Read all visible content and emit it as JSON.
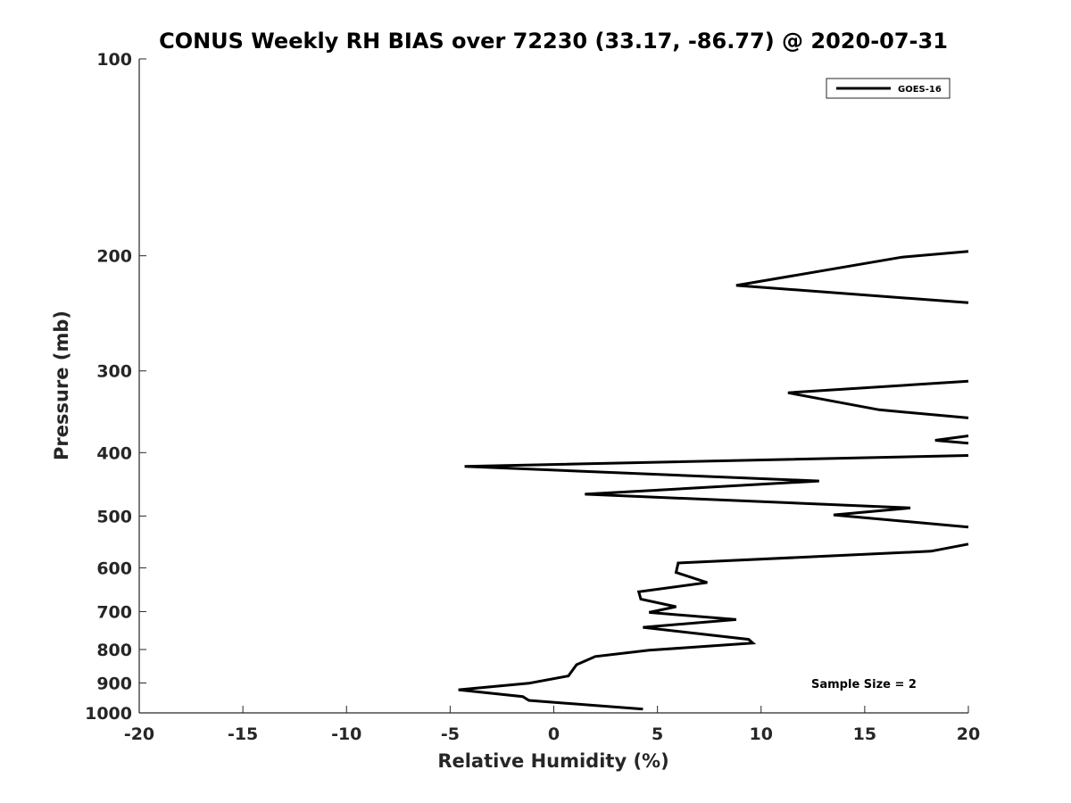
{
  "chart_data": {
    "type": "line",
    "title": "CONUS Weekly RH BIAS over 72230 (33.17, -86.77) @ 2020-07-31",
    "xlabel": "Relative Humidity (%)",
    "ylabel": "Pressure (mb)",
    "xlim": [
      -20,
      20
    ],
    "ylim": [
      100,
      1000
    ],
    "y_scale": "log",
    "y_reversed": true,
    "x_ticks": [
      -20,
      -15,
      -10,
      -5,
      0,
      5,
      10,
      15,
      20
    ],
    "x_tick_labels": [
      "-20",
      "-15",
      "-10",
      "-5",
      "0",
      "5",
      "10",
      "15",
      "20"
    ],
    "y_ticks": [
      100,
      200,
      300,
      400,
      500,
      600,
      700,
      800,
      900,
      1000
    ],
    "y_tick_labels": [
      "100",
      "200",
      "300",
      "400",
      "500",
      "600",
      "700",
      "800",
      "900",
      "1000"
    ],
    "grid": false,
    "legend_position": "top-right",
    "annotation": "Sample Size = 2",
    "line_color": "#000000",
    "series": [
      {
        "name": "GOES-16",
        "segments": [
          {
            "x": [
              20,
              16.8,
              8.8,
              20
            ],
            "y": [
              197,
              201,
              222,
              236
            ]
          },
          {
            "x": [
              20,
              11.3,
              15.7,
              20
            ],
            "y": [
              311,
              324,
              344,
              354
            ]
          },
          {
            "x": [
              20,
              18.4,
              20
            ],
            "y": [
              377,
              383,
              387
            ]
          },
          {
            "x": [
              20,
              -4.3,
              12.8,
              1.5,
              17.2,
              13.5,
              20
            ],
            "y": [
              404,
              420,
              442,
              463,
              486,
              498,
              520
            ]
          },
          {
            "x": [
              20,
              18.2,
              6.0,
              5.9,
              7.4,
              4.1,
              4.2,
              5.9,
              4.6,
              8.8,
              4.3,
              9.4,
              9.6,
              4.6,
              2.0,
              1.1,
              0.7,
              -1.2,
              -4.6,
              -1.5,
              -1.2,
              4.3
            ],
            "y": [
              552,
              566,
              590,
              610,
              632,
              653,
              670,
              688,
              702,
              720,
              740,
              772,
              782,
              802,
              820,
              844,
              878,
              901,
              922,
              944,
              957,
              987
            ]
          }
        ]
      }
    ]
  }
}
